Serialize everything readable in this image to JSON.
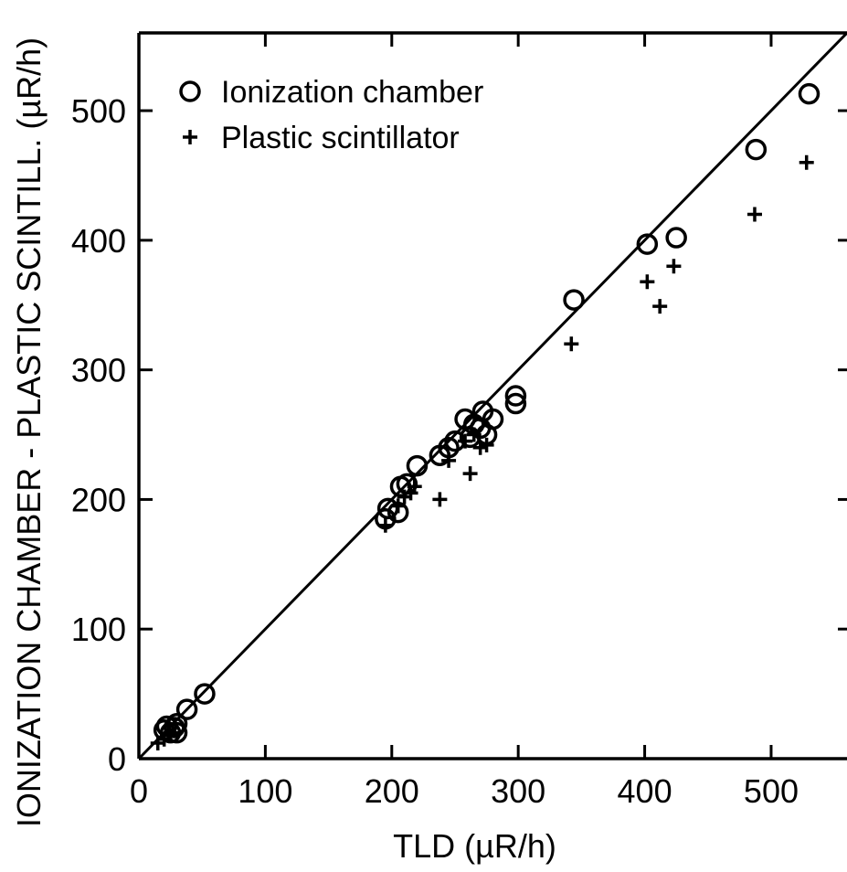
{
  "chart_data": {
    "type": "scatter",
    "xlabel": "TLD (µR/h)",
    "ylabel": "IONIZATION CHAMBER - PLASTIC SCINTILL. (µR/h)",
    "xlim": [
      0,
      560
    ],
    "ylim": [
      0,
      560
    ],
    "x_ticks": [
      0,
      100,
      200,
      300,
      400,
      500
    ],
    "y_ticks": [
      0,
      100,
      200,
      300,
      400,
      500
    ],
    "x_tick_labels": [
      "0",
      "100",
      "200",
      "300",
      "400",
      "500"
    ],
    "y_tick_labels": [
      "0",
      "100",
      "200",
      "300",
      "400",
      "500"
    ],
    "grid": false,
    "legend_position": "top-left",
    "reference_line": {
      "type": "identity",
      "from": [
        0,
        0
      ],
      "to": [
        560,
        560
      ]
    },
    "series": [
      {
        "name": "Ionization chamber",
        "marker": "open-circle",
        "points": [
          [
            20,
            22
          ],
          [
            22,
            25
          ],
          [
            25,
            20
          ],
          [
            28,
            24
          ],
          [
            30,
            20
          ],
          [
            30,
            27
          ],
          [
            38,
            38
          ],
          [
            52,
            50
          ],
          [
            195,
            185
          ],
          [
            197,
            193
          ],
          [
            205,
            190
          ],
          [
            207,
            210
          ],
          [
            212,
            212
          ],
          [
            220,
            226
          ],
          [
            238,
            234
          ],
          [
            245,
            240
          ],
          [
            250,
            245
          ],
          [
            258,
            262
          ],
          [
            262,
            248
          ],
          [
            265,
            258
          ],
          [
            270,
            255
          ],
          [
            272,
            268
          ],
          [
            275,
            250
          ],
          [
            280,
            262
          ],
          [
            298,
            280
          ],
          [
            298,
            274
          ],
          [
            344,
            354
          ],
          [
            402,
            397
          ],
          [
            425,
            402
          ],
          [
            488,
            470
          ],
          [
            530,
            513
          ]
        ]
      },
      {
        "name": "Plastic scintillator",
        "marker": "plus",
        "points": [
          [
            15,
            12
          ],
          [
            20,
            15
          ],
          [
            25,
            18
          ],
          [
            195,
            180
          ],
          [
            205,
            195
          ],
          [
            210,
            202
          ],
          [
            215,
            205
          ],
          [
            218,
            210
          ],
          [
            238,
            200
          ],
          [
            245,
            230
          ],
          [
            258,
            245
          ],
          [
            262,
            220
          ],
          [
            265,
            250
          ],
          [
            270,
            240
          ],
          [
            275,
            242
          ],
          [
            342,
            320
          ],
          [
            402,
            368
          ],
          [
            412,
            349
          ],
          [
            423,
            380
          ],
          [
            487,
            420
          ],
          [
            528,
            460
          ]
        ]
      }
    ]
  }
}
